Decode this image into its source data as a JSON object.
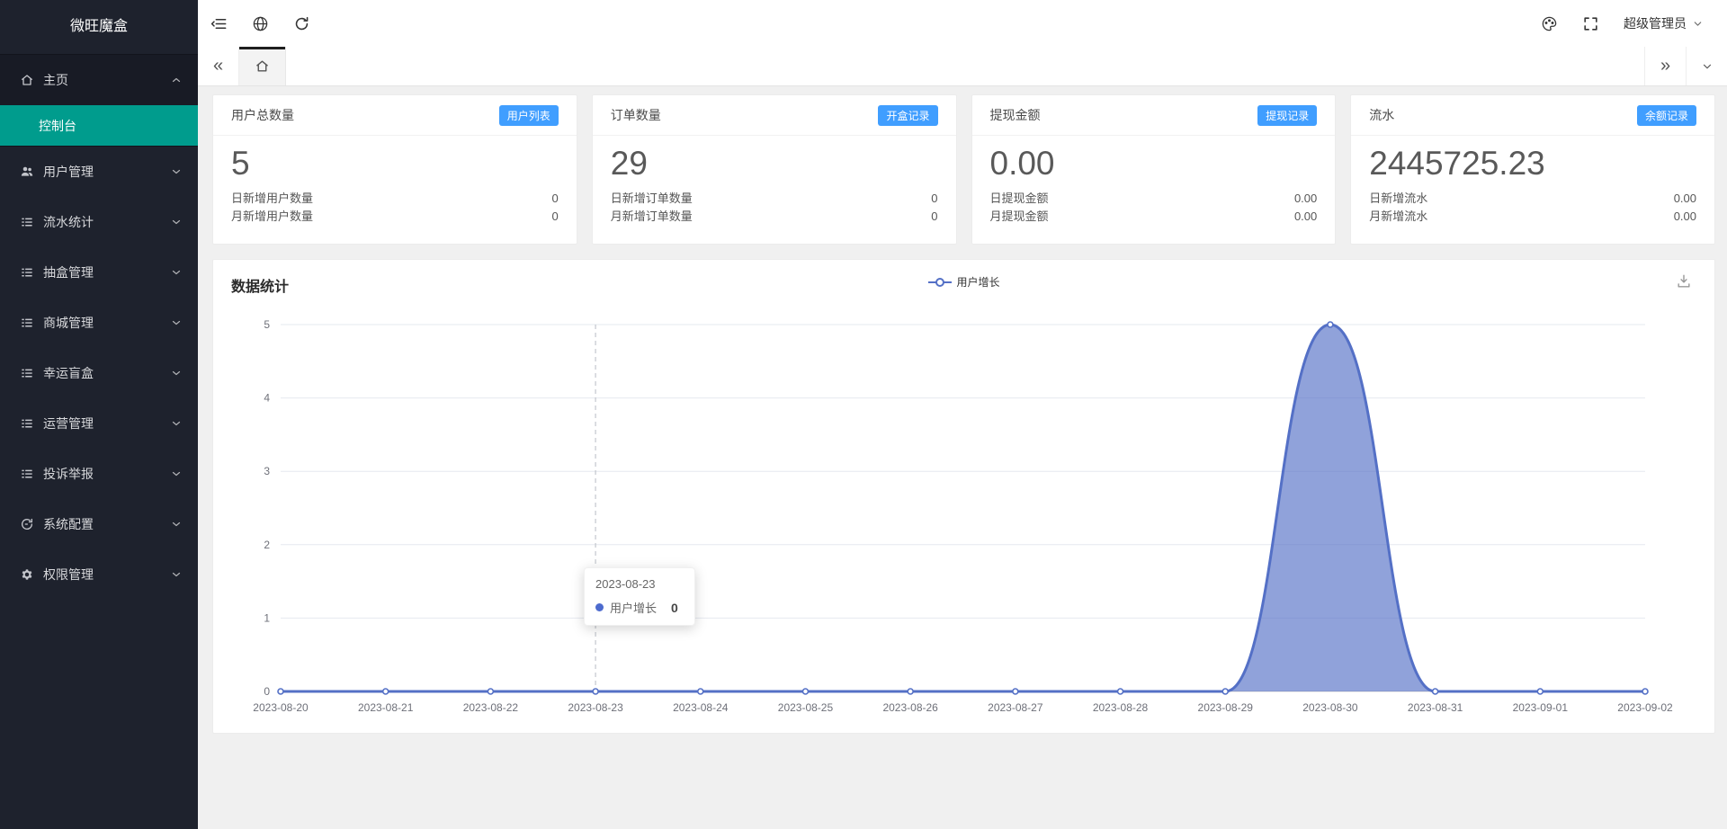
{
  "app": {
    "logo_text": "微旺魔盒"
  },
  "sidebar": {
    "items": [
      {
        "key": "home",
        "label": "主页",
        "icon": "home",
        "expanded": true,
        "children": [
          {
            "key": "console",
            "label": "控制台",
            "active": true
          }
        ]
      },
      {
        "key": "user-management",
        "label": "用户管理",
        "icon": "users"
      },
      {
        "key": "flow-statistics",
        "label": "流水统计",
        "icon": "list"
      },
      {
        "key": "box-management",
        "label": "抽盒管理",
        "icon": "list"
      },
      {
        "key": "mall-management",
        "label": "商城管理",
        "icon": "list"
      },
      {
        "key": "lucky-blindbox",
        "label": "幸运盲盒",
        "icon": "list"
      },
      {
        "key": "operations-management",
        "label": "运营管理",
        "icon": "list"
      },
      {
        "key": "complaints-reports",
        "label": "投诉举报",
        "icon": "list"
      },
      {
        "key": "system-config",
        "label": "系统配置",
        "icon": "reset"
      },
      {
        "key": "permission-management",
        "label": "权限管理",
        "icon": "gear"
      }
    ]
  },
  "topbar": {
    "user_name": "超级管理员"
  },
  "stat_cards": [
    {
      "key": "total-users",
      "title": "用户总数量",
      "badge": "用户列表",
      "value": "5",
      "rows": [
        {
          "label": "日新增用户数量",
          "value": "0"
        },
        {
          "label": "月新增用户数量",
          "value": "0"
        }
      ]
    },
    {
      "key": "order-count",
      "title": "订单数量",
      "badge": "开盒记录",
      "value": "29",
      "rows": [
        {
          "label": "日新增订单数量",
          "value": "0"
        },
        {
          "label": "月新增订单数量",
          "value": "0"
        }
      ]
    },
    {
      "key": "withdrawal-amount",
      "title": "提现金额",
      "badge": "提现记录",
      "value": "0.00",
      "rows": [
        {
          "label": "日提现金额",
          "value": "0.00"
        },
        {
          "label": "月提现金额",
          "value": "0.00"
        }
      ]
    },
    {
      "key": "flow",
      "title": "流水",
      "badge": "余额记录",
      "value": "2445725.23",
      "rows": [
        {
          "label": "日新增流水",
          "value": "0.00"
        },
        {
          "label": "月新增流水",
          "value": "0.00"
        }
      ]
    }
  ],
  "chart_data": {
    "type": "area",
    "title": "数据统计",
    "x": [
      "2023-08-20",
      "2023-08-21",
      "2023-08-22",
      "2023-08-23",
      "2023-08-24",
      "2023-08-25",
      "2023-08-26",
      "2023-08-27",
      "2023-08-28",
      "2023-08-29",
      "2023-08-30",
      "2023-08-31",
      "2023-09-01",
      "2023-09-02"
    ],
    "series": [
      {
        "name": "用户增长",
        "values": [
          0,
          0,
          0,
          0,
          0,
          0,
          0,
          0,
          0,
          0,
          5,
          0,
          0,
          0
        ]
      }
    ],
    "ylim": [
      0,
      5
    ],
    "yticks": [
      0,
      1,
      2,
      3,
      4,
      5
    ],
    "grid": true,
    "legend_position": "top-center",
    "tooltip": {
      "date": "2023-08-23",
      "series": "用户增长",
      "value": "0",
      "anchor_index": 3
    }
  },
  "colors": {
    "sidebar_bg": "#1e222d",
    "accent_teal": "#009c8d",
    "badge_blue": "#409eff",
    "chart_line": "#5470c6",
    "chart_fill_opacity": "0.65"
  }
}
